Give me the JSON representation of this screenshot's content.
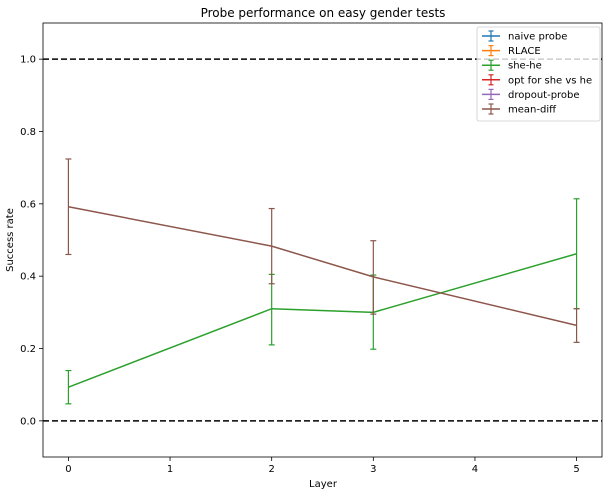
{
  "chart_data": {
    "type": "line",
    "title": "Probe performance on easy gender tests",
    "xlabel": "Layer",
    "ylabel": "Success rate",
    "xlim": [
      -0.25,
      5.25
    ],
    "ylim": [
      -0.1,
      1.1
    ],
    "x_ticks": [
      0,
      1,
      2,
      3,
      4,
      5
    ],
    "y_ticks": [
      0.0,
      0.2,
      0.4,
      0.6,
      0.8,
      1.0
    ],
    "x_tick_labels": [
      "0",
      "1",
      "2",
      "3",
      "4",
      "5"
    ],
    "y_tick_labels": [
      "0.0",
      "0.2",
      "0.4",
      "0.6",
      "0.8",
      "1.0"
    ],
    "grid": false,
    "legend_position": "top-right",
    "reference_lines": [
      {
        "y": 0.0,
        "style": "dashed",
        "color": "#000000"
      },
      {
        "y": 1.0,
        "style": "dashed",
        "color": "#000000"
      }
    ],
    "series": [
      {
        "name": "naive probe",
        "color": "#1f77b4",
        "x": [],
        "y": [],
        "err_low": [],
        "err_high": []
      },
      {
        "name": "RLACE",
        "color": "#ff7f0e",
        "x": [],
        "y": [],
        "err_low": [],
        "err_high": []
      },
      {
        "name": "she-he",
        "color": "#2ca02c",
        "x": [
          0,
          2,
          3,
          5
        ],
        "y": [
          0.093,
          0.31,
          0.3,
          0.462
        ],
        "err_low": [
          0.047,
          0.21,
          0.198,
          0.31
        ],
        "err_high": [
          0.139,
          0.405,
          0.403,
          0.614
        ]
      },
      {
        "name": "opt for she vs he",
        "color": "#d62728",
        "x": [],
        "y": [],
        "err_low": [],
        "err_high": []
      },
      {
        "name": "dropout-probe",
        "color": "#9467bd",
        "x": [],
        "y": [],
        "err_low": [],
        "err_high": []
      },
      {
        "name": "mean-diff",
        "color": "#8c564b",
        "x": [
          0,
          2,
          3,
          5
        ],
        "y": [
          0.592,
          0.483,
          0.398,
          0.264
        ],
        "err_low": [
          0.46,
          0.379,
          0.295,
          0.217
        ],
        "err_high": [
          0.724,
          0.587,
          0.498,
          0.31
        ]
      }
    ]
  }
}
